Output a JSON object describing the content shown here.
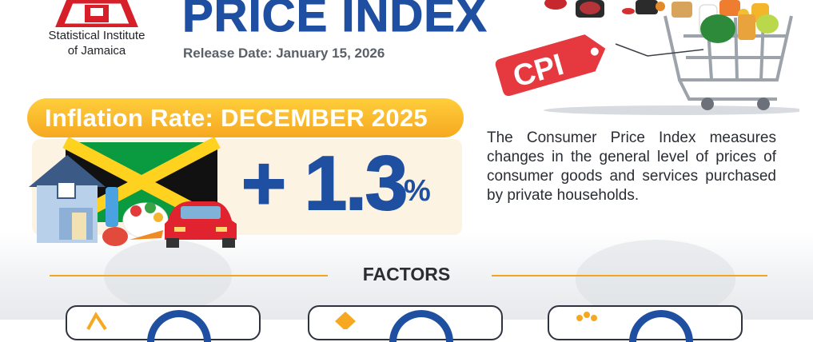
{
  "organization": {
    "line1": "Statistical Institute",
    "line2": "of Jamaica"
  },
  "header": {
    "title": "PRICE INDEX",
    "release_date": "Release Date: January 15, 2026"
  },
  "cpi_tag": "CPI",
  "inflation": {
    "heading": "Inflation Rate: DECEMBER 2025",
    "value": "+ 1.3",
    "unit": "%"
  },
  "description": "The Consumer Price Index measures changes in the general level of prices of consumer goods and services purchased by private households.",
  "factors": {
    "heading": "FACTORS"
  },
  "colors": {
    "brand_blue": "#1f4fa0",
    "accent_orange": "#f6a821",
    "tag_red": "#e5393f",
    "flag_green": "#0a9a3f",
    "flag_gold": "#ffd21f"
  }
}
